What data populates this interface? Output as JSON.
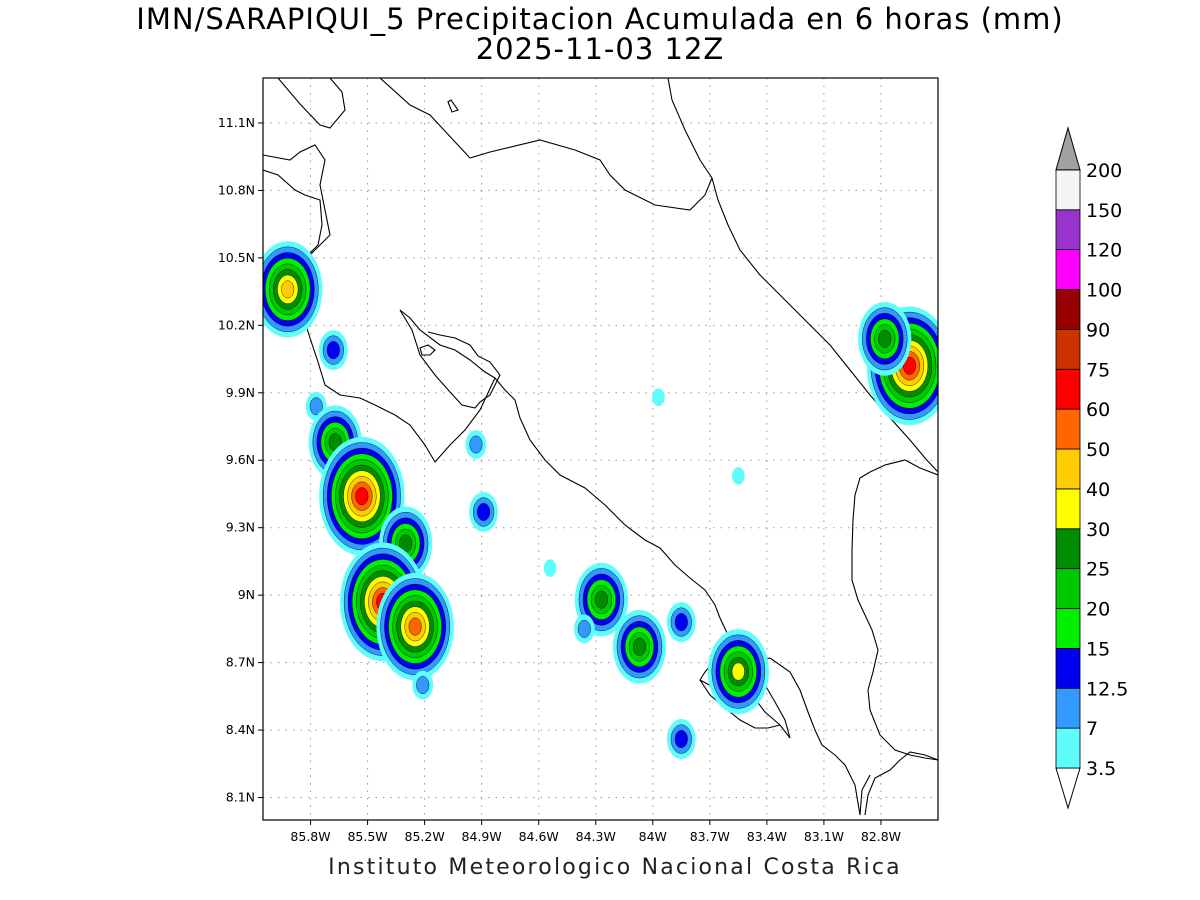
{
  "title_line1": "IMN/SARAPIQUI_5 Precipitacion Acumulada en 6 horas (mm)",
  "title_line2": "2025-11-03 12Z",
  "footer": "Instituto Meteorologico Nacional Costa Rica",
  "map": {
    "lon_range": [
      -86.05,
      -82.5
    ],
    "lat_range": [
      8.0,
      11.3
    ],
    "lon_ticks": [
      {
        "value": -85.8,
        "label": "85.8W"
      },
      {
        "value": -85.5,
        "label": "85.5W"
      },
      {
        "value": -85.2,
        "label": "85.2W"
      },
      {
        "value": -84.9,
        "label": "84.9W"
      },
      {
        "value": -84.6,
        "label": "84.6W"
      },
      {
        "value": -84.3,
        "label": "84.3W"
      },
      {
        "value": -84.0,
        "label": "84W"
      },
      {
        "value": -83.7,
        "label": "83.7W"
      },
      {
        "value": -83.4,
        "label": "83.4W"
      },
      {
        "value": -83.1,
        "label": "83.1W"
      },
      {
        "value": -82.8,
        "label": "82.8W"
      }
    ],
    "lat_ticks": [
      {
        "value": 8.1,
        "label": "8.1N"
      },
      {
        "value": 8.4,
        "label": "8.4N"
      },
      {
        "value": 8.7,
        "label": "8.7N"
      },
      {
        "value": 9.0,
        "label": "9N"
      },
      {
        "value": 9.3,
        "label": "9.3N"
      },
      {
        "value": 9.6,
        "label": "9.6N"
      },
      {
        "value": 9.9,
        "label": "9.9N"
      },
      {
        "value": 10.2,
        "label": "10.2N"
      },
      {
        "value": 10.5,
        "label": "10.5N"
      },
      {
        "value": 10.8,
        "label": "10.8N"
      },
      {
        "value": 11.1,
        "label": "11.1N"
      }
    ],
    "grid": true,
    "grid_style": "dotted"
  },
  "colorbar": {
    "placement": "right",
    "extends": "both",
    "levels": [
      {
        "label": "3.5",
        "color": "#5ffcfc"
      },
      {
        "label": "7",
        "color": "#3399ff"
      },
      {
        "label": "12.5",
        "color": "#0000f0"
      },
      {
        "label": "15",
        "color": "#00f000"
      },
      {
        "label": "20",
        "color": "#00c800"
      },
      {
        "label": "25",
        "color": "#008c00"
      },
      {
        "label": "30",
        "color": "#ffff00"
      },
      {
        "label": "40",
        "color": "#ffcc00"
      },
      {
        "label": "50",
        "color": "#ff6600"
      },
      {
        "label": "60",
        "color": "#ff0000"
      },
      {
        "label": "75",
        "color": "#cc3300"
      },
      {
        "label": "90",
        "color": "#990000"
      },
      {
        "label": "100",
        "color": "#ff00ff"
      },
      {
        "label": "120",
        "color": "#9933cc"
      },
      {
        "label": "150",
        "color": "#f5f5f5"
      },
      {
        "label": "200",
        "color": "#a0a0a0"
      }
    ]
  },
  "precip_cells": [
    {
      "lon": -85.92,
      "lat": 10.36,
      "mm": 40
    },
    {
      "lon": -85.68,
      "lat": 10.09,
      "mm": 12.5
    },
    {
      "lon": -85.77,
      "lat": 9.84,
      "mm": 7
    },
    {
      "lon": -85.67,
      "lat": 9.68,
      "mm": 25
    },
    {
      "lon": -85.53,
      "lat": 9.44,
      "mm": 60
    },
    {
      "lon": -85.3,
      "lat": 9.23,
      "mm": 25
    },
    {
      "lon": -85.42,
      "lat": 8.97,
      "mm": 60
    },
    {
      "lon": -85.25,
      "lat": 8.86,
      "mm": 50
    },
    {
      "lon": -84.93,
      "lat": 9.67,
      "mm": 7
    },
    {
      "lon": -84.89,
      "lat": 9.37,
      "mm": 12.5
    },
    {
      "lon": -84.27,
      "lat": 8.98,
      "mm": 25
    },
    {
      "lon": -84.07,
      "lat": 8.77,
      "mm": 25
    },
    {
      "lon": -83.85,
      "lat": 8.88,
      "mm": 12.5
    },
    {
      "lon": -83.55,
      "lat": 8.66,
      "mm": 30
    },
    {
      "lon": -83.85,
      "lat": 8.36,
      "mm": 12.5
    },
    {
      "lon": -82.65,
      "lat": 10.02,
      "mm": 60
    },
    {
      "lon": -82.78,
      "lat": 10.14,
      "mm": 25
    },
    {
      "lon": -83.97,
      "lat": 9.88,
      "mm": 3.5
    },
    {
      "lon": -83.55,
      "lat": 9.53,
      "mm": 3.5
    },
    {
      "lon": -85.21,
      "lat": 8.6,
      "mm": 7
    },
    {
      "lon": -84.54,
      "lat": 9.12,
      "mm": 3.5
    },
    {
      "lon": -84.36,
      "lat": 8.85,
      "mm": 7
    }
  ]
}
